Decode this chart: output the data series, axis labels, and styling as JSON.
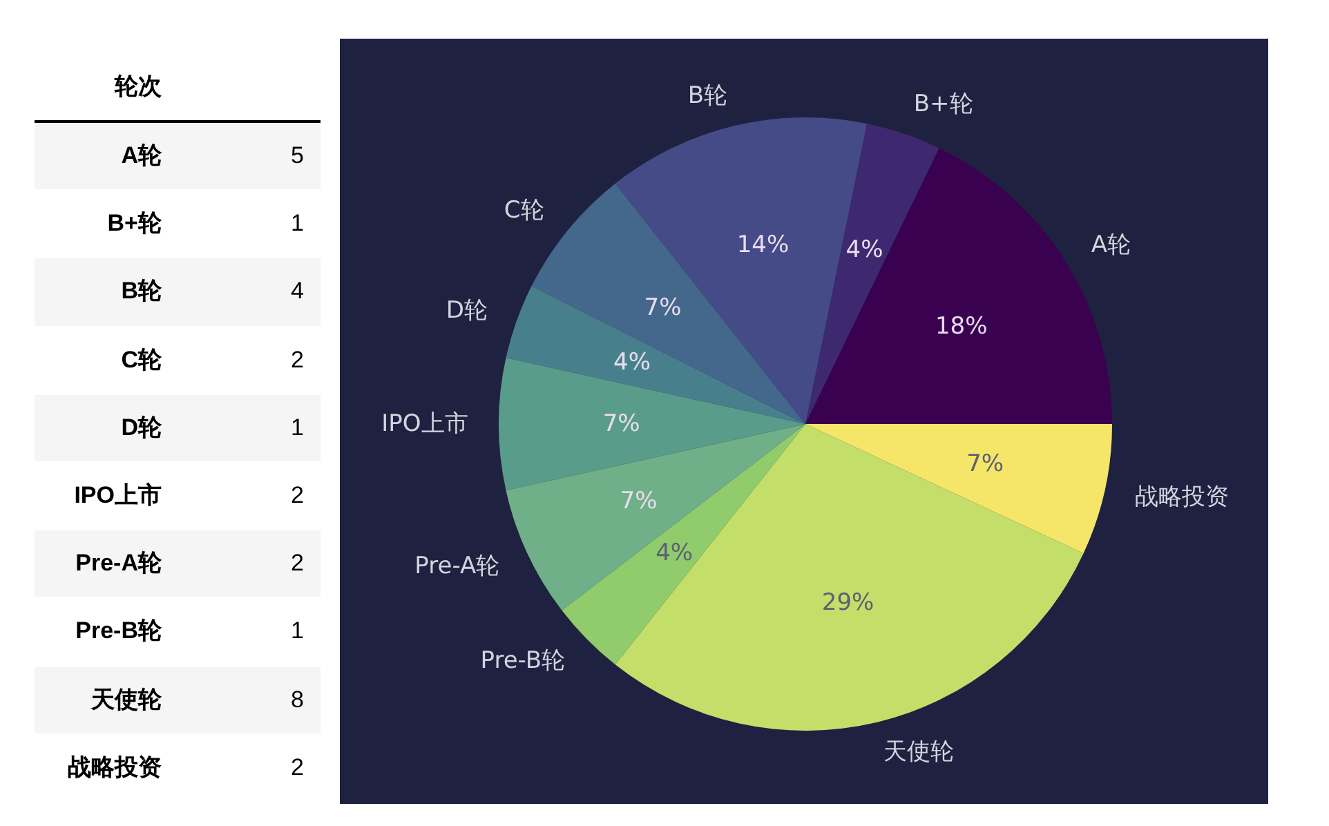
{
  "chart_data": [
    {
      "type": "other",
      "xlabel": "轮次",
      "categories": [
        "A轮",
        "B+轮",
        "B轮",
        "C轮",
        "D轮",
        "IPO上市",
        "Pre-A轮",
        "Pre-B轮",
        "天使轮",
        "战略投资"
      ],
      "values": [
        5,
        1,
        4,
        2,
        1,
        2,
        2,
        1,
        8,
        2
      ],
      "data_labels": true
    },
    {
      "type": "pie",
      "categories": [
        "A轮",
        "B+轮",
        "B轮",
        "C轮",
        "D轮",
        "IPO上市",
        "Pre-A轮",
        "Pre-B轮",
        "天使轮",
        "战略投资"
      ],
      "values": [
        18,
        4,
        14,
        7,
        4,
        7,
        7,
        4,
        29,
        7
      ],
      "colors": [
        "#3a0150",
        "#3e2870",
        "#444b86",
        "#44678c",
        "#47808c",
        "#5a9c8a",
        "#6fb088",
        "#91cc6c",
        "#c4de6a",
        "#f5e66a"
      ],
      "value_labels": [
        "18%",
        "4%",
        "14%",
        "7%",
        "4%",
        "7%",
        "7%",
        "4%",
        "29%",
        "7%"
      ]
    }
  ]
}
